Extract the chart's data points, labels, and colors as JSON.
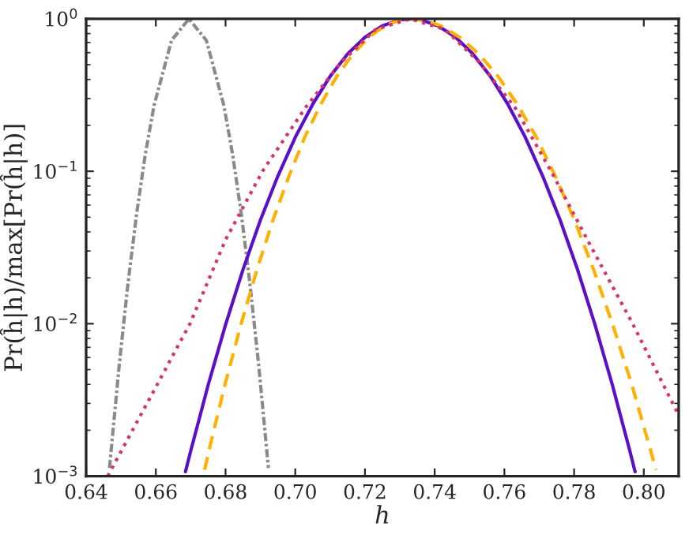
{
  "chart_data": {
    "type": "line",
    "xlabel": "h",
    "ylabel": "Pr(ĥ|h)/max[Pr(ĥ|h)]",
    "log": "y",
    "xlim": [
      0.64,
      0.81
    ],
    "ylim": [
      0.001,
      1
    ],
    "xticks": [
      {
        "value": 0.64,
        "label": "0.64"
      },
      {
        "value": 0.66,
        "label": "0.66"
      },
      {
        "value": 0.68,
        "label": "0.68"
      },
      {
        "value": 0.7,
        "label": "0.70"
      },
      {
        "value": 0.72,
        "label": "0.72"
      },
      {
        "value": 0.74,
        "label": "0.74"
      },
      {
        "value": 0.76,
        "label": "0.76"
      },
      {
        "value": 0.78,
        "label": "0.78"
      },
      {
        "value": 0.8,
        "label": "0.80"
      }
    ],
    "yticks": [
      {
        "value": 0.001,
        "label": "10$^{−3}$"
      },
      {
        "value": 0.01,
        "label": "10$^{−2}$"
      },
      {
        "value": 0.1,
        "label": "10$^{−1}$"
      },
      {
        "value": 1,
        "label": "10$^{0}$"
      }
    ],
    "grid": false,
    "legend": false,
    "marker": "none",
    "series": [
      {
        "color": "#8a8a8a",
        "line_style": "dashdot",
        "x": [
          0.6467,
          0.6495,
          0.652,
          0.6545,
          0.657,
          0.6595,
          0.6645,
          0.6695,
          0.6745,
          0.6795,
          0.682,
          0.6845,
          0.687,
          0.6895,
          0.6923
        ],
        "values": [
          0.00113,
          0.00537,
          0.0183,
          0.053,
          0.13,
          0.271,
          0.722,
          1,
          0.722,
          0.271,
          0.13,
          0.053,
          0.0183,
          0.00537,
          0.00113
        ]
      },
      {
        "color": "#5a0fc8",
        "line_style": "solid",
        "x": [
          0.6685,
          0.67,
          0.675,
          0.68,
          0.685,
          0.69,
          0.695,
          0.7,
          0.705,
          0.71,
          0.715,
          0.72,
          0.725,
          0.73,
          0.733,
          0.736,
          0.741,
          0.746,
          0.751,
          0.756,
          0.761,
          0.766,
          0.771,
          0.776,
          0.781,
          0.786,
          0.791,
          0.796,
          0.7975
        ],
        "values": [
          0.00107,
          0.00146,
          0.00395,
          0.00984,
          0.0226,
          0.0478,
          0.0929,
          0.167,
          0.275,
          0.419,
          0.587,
          0.757,
          0.9,
          0.985,
          1,
          0.985,
          0.9,
          0.757,
          0.587,
          0.419,
          0.275,
          0.167,
          0.0929,
          0.0478,
          0.0226,
          0.00984,
          0.00395,
          0.00146,
          0.00107
        ]
      },
      {
        "color": "#ffb000",
        "line_style": "dashed",
        "x": [
          0.674,
          0.6752,
          0.6798,
          0.6844,
          0.689,
          0.6936,
          0.6982,
          0.7027,
          0.7073,
          0.7119,
          0.7165,
          0.7211,
          0.7257,
          0.7302,
          0.733,
          0.7363,
          0.7418,
          0.7472,
          0.7527,
          0.7582,
          0.7637,
          0.7692,
          0.7746,
          0.7801,
          0.7856,
          0.7911,
          0.7966,
          0.802,
          0.8035
        ],
        "values": [
          0.0011,
          0.00146,
          0.00395,
          0.00984,
          0.0226,
          0.0478,
          0.0929,
          0.167,
          0.275,
          0.419,
          0.587,
          0.757,
          0.9,
          0.985,
          1,
          0.985,
          0.9,
          0.757,
          0.587,
          0.419,
          0.275,
          0.167,
          0.0929,
          0.0478,
          0.0226,
          0.00984,
          0.00395,
          0.00146,
          0.0011
        ]
      },
      {
        "color": "#d6336c",
        "line_style": "dotted",
        "x": [
          0.6462,
          0.658,
          0.6698,
          0.68,
          0.6906,
          0.703,
          0.713,
          0.723,
          0.733,
          0.743,
          0.753,
          0.763,
          0.7734,
          0.785,
          0.7968,
          0.81
        ],
        "values": [
          0.001,
          0.00316,
          0.01,
          0.0355,
          0.1,
          0.263,
          0.513,
          0.851,
          1,
          0.851,
          0.513,
          0.263,
          0.1,
          0.0316,
          0.01,
          0.00251
        ]
      }
    ]
  }
}
